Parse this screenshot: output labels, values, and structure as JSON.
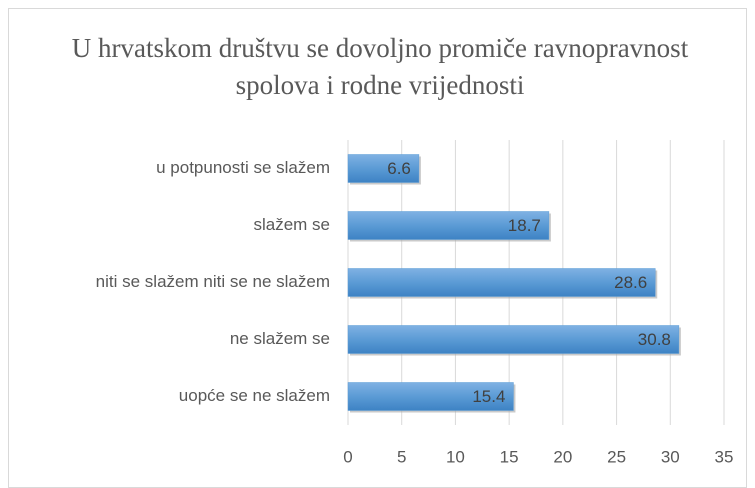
{
  "chart_data": {
    "type": "bar",
    "orientation": "horizontal",
    "title": "U hrvatskom društvu se dovoljno promiče ravnopravnost spolova i rodne vrijednosti",
    "categories": [
      "u potpunosti se slažem",
      "slažem se",
      "niti se slažem niti se ne slažem",
      "ne slažem se",
      "uopće se ne slažem"
    ],
    "values": [
      6.6,
      18.7,
      28.6,
      30.8,
      15.4
    ],
    "color": "#5b9bd5",
    "xlim": [
      0,
      35
    ],
    "xticks": [
      0,
      5,
      10,
      15,
      20,
      25,
      30,
      35
    ],
    "grid": true
  }
}
